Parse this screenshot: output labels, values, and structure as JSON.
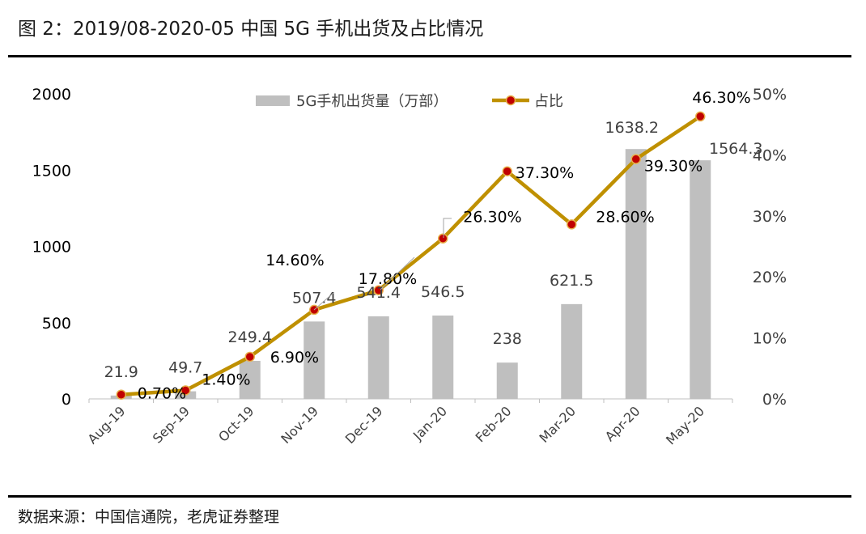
{
  "figure": {
    "title": "图 2：2019/08-2020-05 中国 5G 手机出货及占比情况",
    "source": "数据来源：中国信通院，老虎证券整理"
  },
  "colors": {
    "bar": "#bfbfbf",
    "line": "#bf9000",
    "marker_fill": "#c00000",
    "rule": "#000000"
  },
  "chart_data": {
    "type": "bar",
    "title": "",
    "categories": [
      "Aug-19",
      "Sep-19",
      "Oct-19",
      "Nov-19",
      "Dec-19",
      "Jan-20",
      "Feb-20",
      "Mar-20",
      "Apr-20",
      "May-20"
    ],
    "series": [
      {
        "name": "5G手机出货量（万部）",
        "type": "bar",
        "axis": "left",
        "values": [
          21.9,
          49.7,
          249.4,
          507.4,
          541.4,
          546.5,
          238,
          621.5,
          1638.2,
          1564.3
        ],
        "labels": [
          "21.9",
          "49.7",
          "249.4",
          "507.4",
          "541.4",
          "546.5",
          "238",
          "621.5",
          "1638.2",
          "1564.3"
        ]
      },
      {
        "name": "占比",
        "type": "line",
        "axis": "right",
        "values": [
          0.7,
          1.4,
          6.9,
          14.6,
          17.8,
          26.3,
          37.3,
          28.6,
          39.3,
          46.3
        ],
        "labels": [
          "0.70%",
          "1.40%",
          "6.90%",
          "14.60%",
          "17.80%",
          "26.30%",
          "37.30%",
          "28.60%",
          "39.30%",
          "46.30%"
        ]
      }
    ],
    "y_left": {
      "lim": [
        0,
        2000
      ],
      "ticks": [
        "0",
        "500",
        "1000",
        "1500",
        "2000"
      ]
    },
    "y_right": {
      "lim": [
        0,
        50
      ],
      "ticks": [
        "0%",
        "10%",
        "20%",
        "30%",
        "40%",
        "50%"
      ]
    },
    "grid": false,
    "legend_position": "top"
  }
}
